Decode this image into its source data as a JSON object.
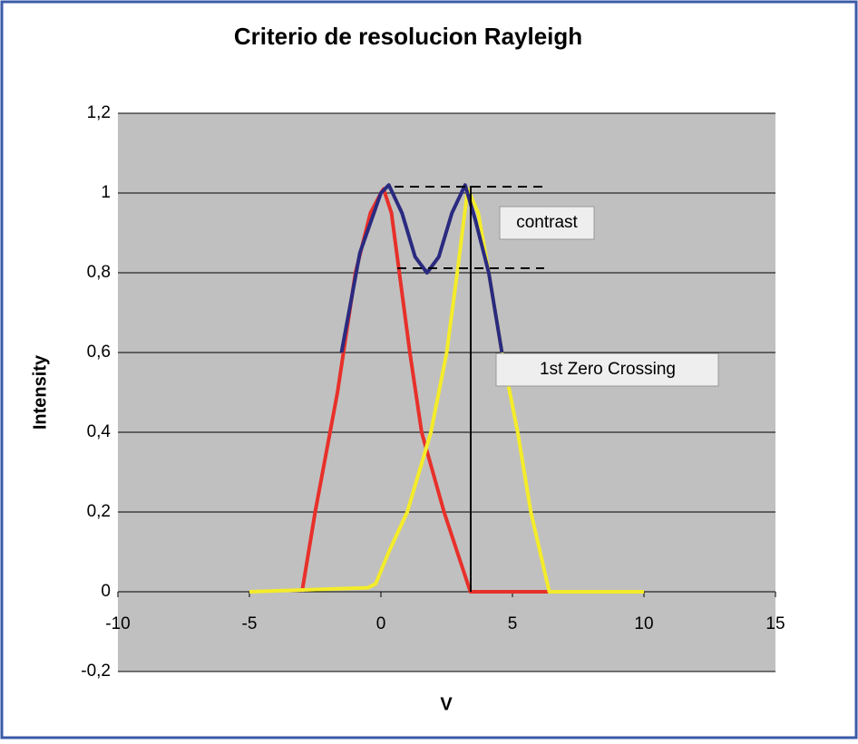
{
  "chart_data": {
    "type": "line",
    "title": "Criterio de resolucion Rayleigh",
    "x_label": "V",
    "y_label": "Intensity",
    "series": [
      {
        "name": "red",
        "color": "#e8302a",
        "x": [
          -3,
          -2.5,
          -1.65,
          -0.97,
          -0.4,
          0,
          0.1,
          0.4,
          0.7,
          1.1,
          1.55,
          2.4,
          3.4,
          5,
          8
        ],
        "values": [
          0,
          0.2,
          0.5,
          0.8,
          0.95,
          1,
          1.01,
          0.95,
          0.8,
          0.6,
          0.4,
          0.2,
          0,
          0,
          0
        ]
      },
      {
        "name": "yellow",
        "color": "#f4ec2a",
        "x": [
          -5,
          -0.5,
          -0.2,
          0.3,
          1.0,
          1.9,
          2.5,
          2.9,
          3.3,
          3.7,
          4.1,
          4.6,
          5.2,
          5.7,
          6.4,
          7,
          10
        ],
        "values": [
          0,
          0.01,
          0.02,
          0.1,
          0.2,
          0.4,
          0.6,
          0.8,
          1.01,
          0.95,
          0.8,
          0.6,
          0.4,
          0.2,
          0,
          0,
          0
        ]
      },
      {
        "name": "blue",
        "color": "#2a2a80",
        "x": [
          -1.5,
          -0.8,
          0,
          0.3,
          0.8,
          1.3,
          1.75,
          2.2,
          2.7,
          3.2,
          3.6,
          4.1,
          4.6
        ],
        "values": [
          0.6,
          0.85,
          1,
          1.02,
          0.95,
          0.84,
          0.8,
          0.84,
          0.95,
          1.02,
          0.93,
          0.8,
          0.6
        ]
      }
    ],
    "annotations": [
      "contrast",
      "1st Zero Crossing"
    ],
    "xlim": [
      -10,
      15
    ],
    "xticks": [
      -10,
      -5,
      0,
      5,
      10,
      15
    ],
    "ylim": [
      -0.2,
      1.2
    ],
    "yticks": [
      {
        "value": -0.2,
        "label": "-0,2"
      },
      0,
      {
        "value": 0.2,
        "label": "0,2"
      },
      {
        "value": 0.4,
        "label": "0,4"
      },
      {
        "value": 0.6,
        "label": "0,6"
      },
      {
        "value": 0.8,
        "label": "0,8"
      },
      1,
      {
        "value": 1.2,
        "label": "1,2"
      }
    ],
    "grid": true,
    "plot_background": "#c0c0c0"
  }
}
